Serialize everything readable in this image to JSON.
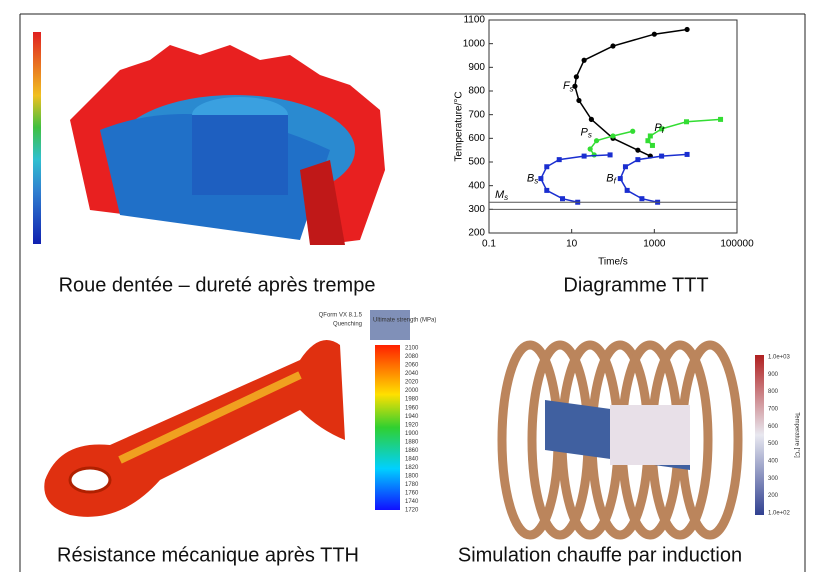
{
  "panels": [
    {
      "caption": "Roue dentée – dureté après trempe"
    },
    {
      "caption": "Diagramme TTT"
    },
    {
      "caption": "Résistance mécanique après TTH",
      "header": [
        "QForm VX 8.1.5",
        "Quenching"
      ],
      "scale_title": "Ultimate strength (MPa)",
      "scale_labels": [
        2100,
        2080,
        2060,
        2040,
        2020,
        2000,
        1980,
        1960,
        1940,
        1920,
        1900,
        1880,
        1860,
        1840,
        1820,
        1800,
        1780,
        1760,
        1740,
        1720
      ]
    },
    {
      "caption": "Simulation chauffe par induction",
      "scale_title": "Temperature [°C]",
      "scale_labels": [
        "1.0e+03",
        900,
        800,
        700,
        600,
        500,
        400,
        300,
        200,
        "1.0e+02"
      ]
    }
  ],
  "chart_data": {
    "type": "line",
    "x_label": "Time/s",
    "y_label": "Temperature/°C",
    "log_x": true,
    "xlim": [
      0.1,
      100000
    ],
    "ylim": [
      200,
      1100
    ],
    "xticks": [
      0.1,
      10,
      1000,
      100000
    ],
    "yticks": [
      200,
      300,
      400,
      500,
      600,
      700,
      800,
      900,
      1000,
      1100
    ],
    "series": [
      {
        "name": "Fs",
        "color": "#000000",
        "marker": "circle",
        "x": [
          6200,
          1000,
          100,
          20,
          13,
          12,
          15,
          30,
          100,
          400,
          800
        ],
        "values": [
          1060,
          1040,
          990,
          930,
          860,
          820,
          760,
          680,
          600,
          550,
          525
        ]
      },
      {
        "name": "Ps",
        "color": "#33dd33",
        "marker": "circle",
        "x": [
          300,
          100,
          40,
          28,
          35
        ],
        "values": [
          630,
          610,
          590,
          555,
          530
        ]
      },
      {
        "name": "Pf",
        "color": "#33dd33",
        "marker": "square",
        "x": [
          40000,
          6000,
          1500,
          800,
          700,
          900
        ],
        "values": [
          680,
          670,
          640,
          610,
          590,
          570
        ]
      },
      {
        "name": "Bs",
        "color": "#1a2ed0",
        "marker": "square",
        "x": [
          85,
          20,
          5,
          2.5,
          1.8,
          2.5,
          6,
          14
        ],
        "values": [
          530,
          525,
          510,
          480,
          430,
          380,
          345,
          330
        ]
      },
      {
        "name": "Bf",
        "color": "#1a2ed0",
        "marker": "square",
        "x": [
          6200,
          1500,
          400,
          200,
          150,
          220,
          500,
          1200
        ],
        "values": [
          532,
          525,
          510,
          480,
          430,
          380,
          345,
          330
        ]
      },
      {
        "name": "Ms",
        "color": "#555555",
        "marker": "none",
        "x": [
          0.1,
          100000
        ],
        "values": [
          330,
          330
        ]
      },
      {
        "color": "#555555",
        "marker": "none",
        "x": [
          0.1,
          100000
        ],
        "values": [
          300,
          300
        ]
      }
    ]
  }
}
